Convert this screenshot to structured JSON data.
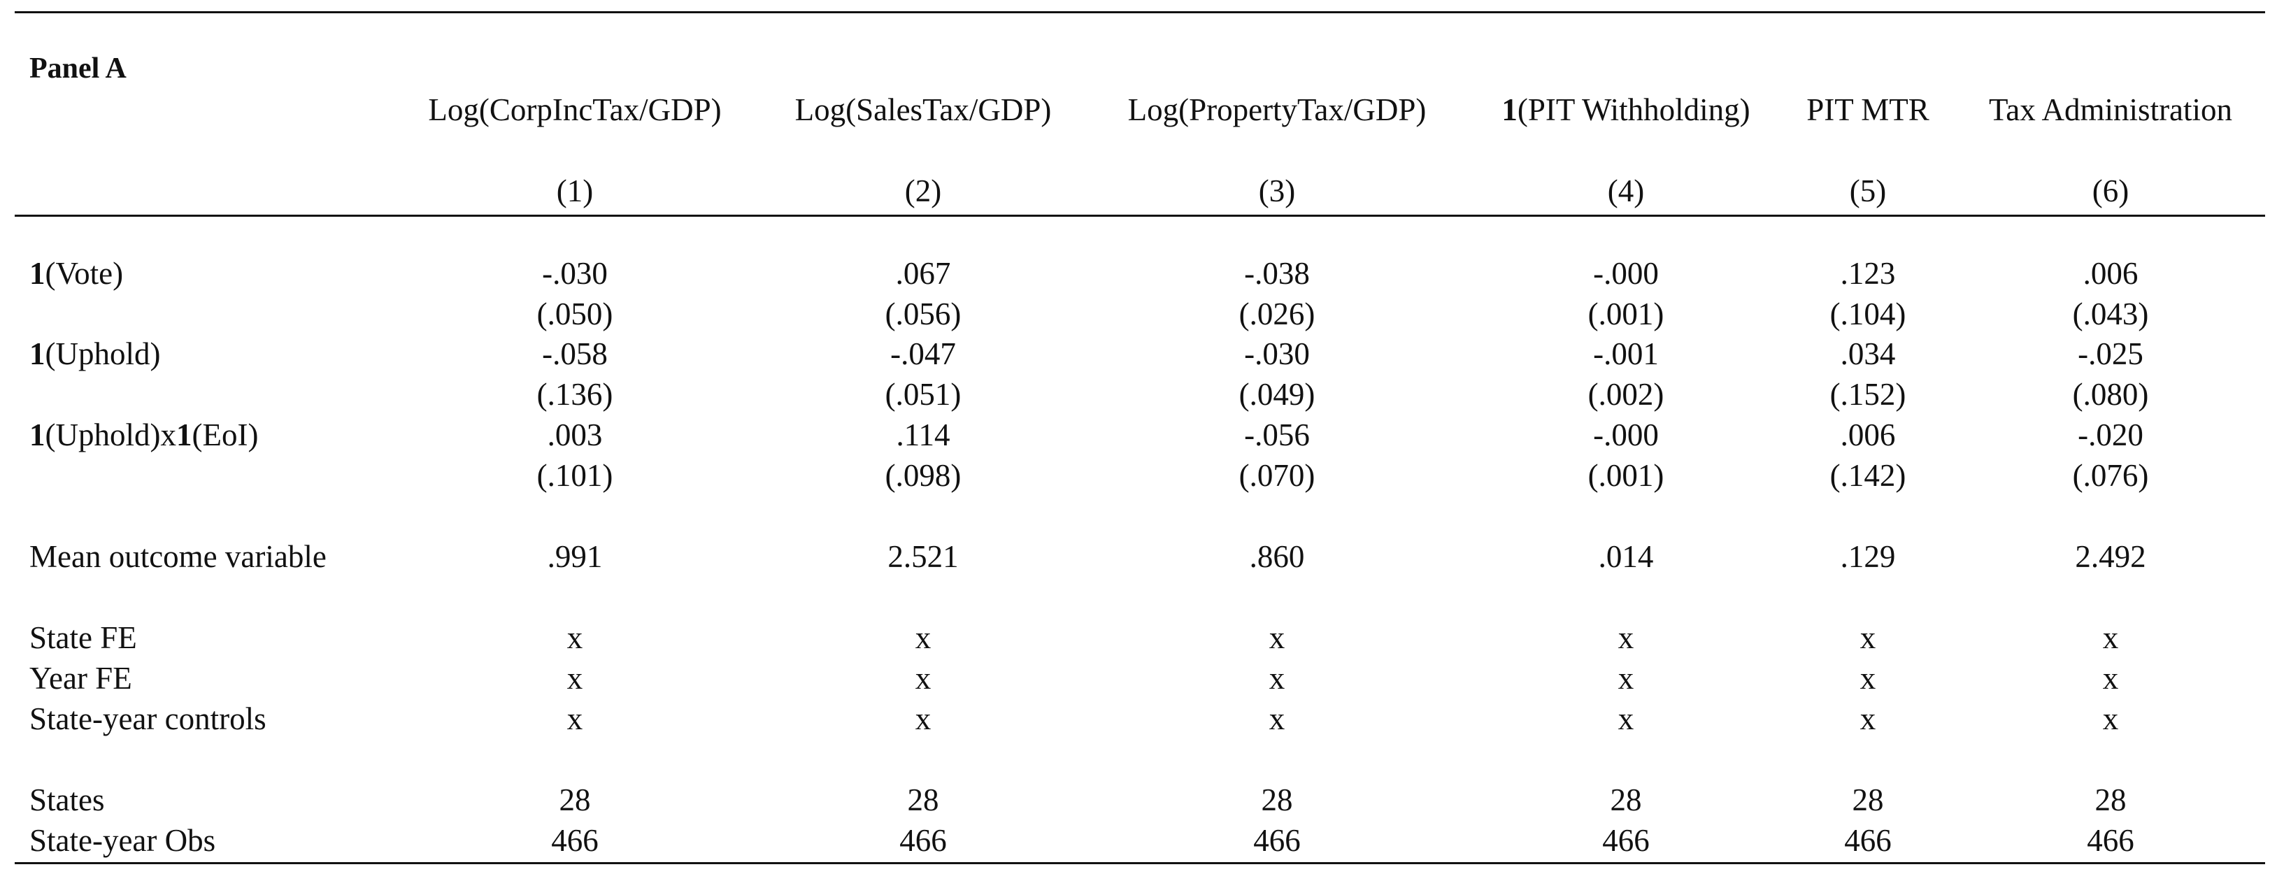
{
  "panel_title": "Panel A",
  "columns": [
    {
      "prefix": "",
      "label": "Log(CorpIncTax/GDP)",
      "num": "(1)"
    },
    {
      "prefix": "",
      "label": "Log(SalesTax/GDP)",
      "num": "(2)"
    },
    {
      "prefix": "",
      "label": "Log(PropertyTax/GDP)",
      "num": "(3)"
    },
    {
      "prefix": "1",
      "label": "(PIT Withholding)",
      "num": "(4)"
    },
    {
      "prefix": "",
      "label": "PIT MTR",
      "num": "(5)"
    },
    {
      "prefix": "",
      "label": "Tax Administration",
      "num": "(6)"
    }
  ],
  "rows": {
    "vote": {
      "ind": "1",
      "label": "(Vote)",
      "coef": [
        "-.030",
        ".067",
        "-.038",
        "-.000",
        ".123",
        ".006"
      ],
      "se": [
        "(.050)",
        "(.056)",
        "(.026)",
        "(.001)",
        "(.104)",
        "(.043)"
      ]
    },
    "uphold": {
      "ind": "1",
      "label": "(Uphold)",
      "coef": [
        "-.058",
        "-.047",
        "-.030",
        "-.001",
        ".034",
        "-.025"
      ],
      "se": [
        "(.136)",
        "(.051)",
        "(.049)",
        "(.002)",
        "(.152)",
        "(.080)"
      ]
    },
    "uphold_eoi": {
      "ind1": "1",
      "label1": "(Uphold)x",
      "ind2": "1",
      "label2": "(EoI)",
      "coef": [
        ".003",
        ".114",
        "-.056",
        "-.000",
        ".006",
        "-.020"
      ],
      "se": [
        "(.101)",
        "(.098)",
        "(.070)",
        "(.001)",
        "(.142)",
        "(.076)"
      ]
    },
    "mean": {
      "label": "Mean outcome variable",
      "values": [
        ".991",
        "2.521",
        ".860",
        ".014",
        ".129",
        "2.492"
      ]
    },
    "state_fe": {
      "label": "State FE",
      "values": [
        "x",
        "x",
        "x",
        "x",
        "x",
        "x"
      ]
    },
    "year_fe": {
      "label": "Year FE",
      "values": [
        "x",
        "x",
        "x",
        "x",
        "x",
        "x"
      ]
    },
    "controls": {
      "label": "State-year controls",
      "values": [
        "x",
        "x",
        "x",
        "x",
        "x",
        "x"
      ]
    },
    "states": {
      "label": "States",
      "values": [
        "28",
        "28",
        "28",
        "28",
        "28",
        "28"
      ]
    },
    "obs": {
      "label": "State-year Obs",
      "values": [
        "466",
        "466",
        "466",
        "466",
        "466",
        "466"
      ]
    }
  }
}
